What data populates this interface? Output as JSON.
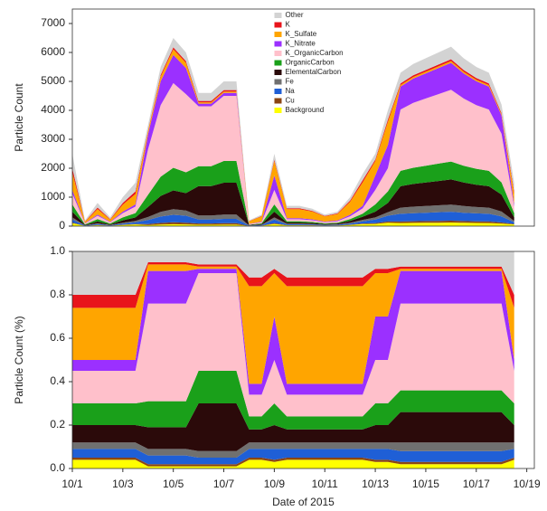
{
  "chart_data": [
    {
      "type": "area",
      "stacked": true,
      "ylabel": "Particle Count",
      "legend": "top-center",
      "x": [
        1,
        1.5,
        2,
        2.5,
        3,
        3.5,
        4,
        4.5,
        5,
        5.5,
        6,
        6.5,
        7,
        7.5,
        8,
        8.5,
        9,
        9.5,
        10,
        10.5,
        11,
        11.5,
        12,
        12.5,
        13,
        13.5,
        14,
        14.5,
        15,
        15.5,
        16,
        16.5,
        17,
        17.5,
        18,
        18.5
      ],
      "xlim": [
        1,
        19.3
      ],
      "ylim": [
        0,
        7500
      ],
      "yticks": [
        0,
        1000,
        2000,
        3000,
        4000,
        5000,
        6000,
        7000
      ],
      "series": [
        {
          "name": "Other",
          "color": "#d3d3d3",
          "values": [
            500,
            40,
            160,
            60,
            200,
            300,
            175,
            275,
            325,
            300,
            276,
            276,
            300,
            300,
            24,
            48,
            200,
            84,
            84,
            72,
            48,
            60,
            120,
            216,
            200,
            320,
            371,
            392,
            406,
            420,
            434,
            406,
            385,
            371,
            294,
            300
          ]
        },
        {
          "name": "K",
          "color": "#e8141b",
          "values": [
            150,
            12,
            48,
            18,
            60,
            90,
            35,
            55,
            65,
            60,
            46,
            46,
            50,
            50,
            8,
            16,
            50,
            28,
            28,
            24,
            16,
            20,
            40,
            72,
            50,
            80,
            53,
            56,
            58,
            60,
            62,
            58,
            55,
            53,
            42,
            90
          ]
        },
        {
          "name": "K_Sulfate",
          "color": "#ffa500",
          "values": [
            600,
            48,
            192,
            72,
            240,
            360,
            105,
            165,
            195,
            180,
            46,
            46,
            50,
            50,
            90,
            180,
            500,
            315,
            315,
            270,
            180,
            225,
            450,
            810,
            500,
            800,
            53,
            56,
            58,
            60,
            62,
            58,
            55,
            53,
            42,
            360
          ]
        },
        {
          "name": "K_Nitrate",
          "color": "#9b30ff",
          "values": [
            125,
            10,
            40,
            15,
            50,
            75,
            525,
            825,
            975,
            900,
            92,
            92,
            100,
            100,
            10,
            20,
            500,
            35,
            35,
            30,
            20,
            25,
            50,
            90,
            500,
            800,
            795,
            840,
            870,
            900,
            930,
            870,
            825,
            795,
            630,
            75
          ]
        },
        {
          "name": "K_OrganicCarbon",
          "color": "#ffc0cb",
          "values": [
            375,
            30,
            120,
            45,
            150,
            225,
            1575,
            2475,
            2925,
            2700,
            2070,
            2070,
            2250,
            2250,
            20,
            40,
            500,
            70,
            70,
            60,
            40,
            50,
            100,
            180,
            500,
            800,
            2120,
            2240,
            2320,
            2400,
            2480,
            2320,
            2200,
            2120,
            1680,
            225
          ]
        },
        {
          "name": "OrganicCarbon",
          "color": "#1aa01a",
          "values": [
            250,
            20,
            80,
            30,
            100,
            150,
            420,
            660,
            780,
            720,
            690,
            690,
            750,
            750,
            12,
            24,
            250,
            42,
            42,
            36,
            24,
            30,
            60,
            108,
            250,
            400,
            530,
            560,
            580,
            600,
            620,
            580,
            550,
            530,
            420,
            150
          ]
        },
        {
          "name": "ElementalCarbon",
          "color": "#2b0a0a",
          "values": [
            200,
            16,
            64,
            24,
            80,
            120,
            350,
            550,
            650,
            600,
            1012,
            1012,
            1100,
            1100,
            12,
            24,
            200,
            42,
            42,
            36,
            24,
            30,
            60,
            108,
            200,
            320,
            742,
            784,
            812,
            840,
            868,
            812,
            770,
            742,
            588,
            120
          ]
        },
        {
          "name": "Fe",
          "color": "#707070",
          "values": [
            75,
            6,
            24,
            9,
            30,
            45,
            105,
            165,
            195,
            180,
            138,
            138,
            150,
            150,
            6,
            12,
            75,
            21,
            21,
            18,
            12,
            15,
            30,
            54,
            75,
            120,
            212,
            224,
            232,
            240,
            248,
            232,
            220,
            212,
            168,
            45
          ]
        },
        {
          "name": "Na",
          "color": "#1f5fd6",
          "values": [
            100,
            8,
            32,
            12,
            40,
            60,
            140,
            220,
            260,
            240,
            138,
            138,
            150,
            150,
            8,
            16,
            125,
            28,
            28,
            24,
            16,
            20,
            40,
            72,
            125,
            200,
            265,
            280,
            290,
            300,
            310,
            290,
            275,
            265,
            210,
            60
          ]
        },
        {
          "name": "Cu",
          "color": "#8b4513",
          "values": [
            25,
            2,
            8,
            3,
            10,
            15,
            35,
            55,
            65,
            60,
            46,
            46,
            50,
            50,
            2,
            4,
            25,
            7,
            7,
            6,
            4,
            5,
            10,
            18,
            25,
            40,
            53,
            56,
            58,
            60,
            62,
            58,
            55,
            53,
            42,
            15
          ]
        },
        {
          "name": "Background",
          "color": "#ffff00",
          "values": [
            100,
            8,
            32,
            12,
            40,
            60,
            35,
            55,
            65,
            60,
            46,
            46,
            50,
            50,
            8,
            16,
            75,
            28,
            28,
            24,
            16,
            20,
            40,
            72,
            75,
            120,
            106,
            112,
            116,
            120,
            124,
            116,
            110,
            106,
            84,
            60
          ]
        }
      ]
    },
    {
      "type": "area",
      "stacked": true,
      "ylabel": "Particle Count (%)",
      "xlabel": "Date of 2015",
      "x": [
        1,
        1.5,
        2,
        2.5,
        3,
        3.5,
        4,
        4.5,
        5,
        5.5,
        6,
        6.5,
        7,
        7.5,
        8,
        8.5,
        9,
        9.5,
        10,
        10.5,
        11,
        11.5,
        12,
        12.5,
        13,
        13.5,
        14,
        14.5,
        15,
        15.5,
        16,
        16.5,
        17,
        17.5,
        18,
        18.5
      ],
      "xlim": [
        1,
        19.3
      ],
      "xticks": [
        {
          "value": 1,
          "label": "10/1"
        },
        {
          "value": 3,
          "label": "10/3"
        },
        {
          "value": 5,
          "label": "10/5"
        },
        {
          "value": 7,
          "label": "10/7"
        },
        {
          "value": 9,
          "label": "10/9"
        },
        {
          "value": 11,
          "label": "10/11"
        },
        {
          "value": 13,
          "label": "10/13"
        },
        {
          "value": 15,
          "label": "10/15"
        },
        {
          "value": 17,
          "label": "10/17"
        },
        {
          "value": 19,
          "label": "10/19"
        }
      ],
      "ylim": [
        0,
        1
      ],
      "yticks": [
        {
          "value": 0,
          "label": "0.0"
        },
        0.2,
        0.4,
        0.6,
        0.8,
        {
          "value": 1,
          "label": "1.0"
        }
      ],
      "series": [
        {
          "color": "#d3d3d3",
          "values": [
            0.2,
            0.2,
            0.2,
            0.2,
            0.2,
            0.2,
            0.05,
            0.05,
            0.05,
            0.05,
            0.06,
            0.06,
            0.06,
            0.06,
            0.12,
            0.12,
            0.08,
            0.12,
            0.12,
            0.12,
            0.12,
            0.12,
            0.12,
            0.12,
            0.08,
            0.08,
            0.07,
            0.07,
            0.07,
            0.07,
            0.07,
            0.07,
            0.07,
            0.07,
            0.07,
            0.2
          ]
        },
        {
          "color": "#e8141b",
          "values": [
            0.06,
            0.06,
            0.06,
            0.06,
            0.06,
            0.06,
            0.01,
            0.01,
            0.01,
            0.01,
            0.01,
            0.01,
            0.01,
            0.01,
            0.04,
            0.04,
            0.02,
            0.04,
            0.04,
            0.04,
            0.04,
            0.04,
            0.04,
            0.04,
            0.02,
            0.02,
            0.01,
            0.01,
            0.01,
            0.01,
            0.01,
            0.01,
            0.01,
            0.01,
            0.01,
            0.06
          ]
        },
        {
          "color": "#ffa500",
          "values": [
            0.24,
            0.24,
            0.24,
            0.24,
            0.24,
            0.24,
            0.03,
            0.03,
            0.03,
            0.03,
            0.01,
            0.01,
            0.01,
            0.01,
            0.45,
            0.45,
            0.2,
            0.45,
            0.45,
            0.45,
            0.45,
            0.45,
            0.45,
            0.45,
            0.2,
            0.2,
            0.01,
            0.01,
            0.01,
            0.01,
            0.01,
            0.01,
            0.01,
            0.01,
            0.01,
            0.24
          ]
        },
        {
          "color": "#9b30ff",
          "values": [
            0.05,
            0.05,
            0.05,
            0.05,
            0.05,
            0.05,
            0.15,
            0.15,
            0.15,
            0.15,
            0.02,
            0.02,
            0.02,
            0.02,
            0.05,
            0.05,
            0.2,
            0.05,
            0.05,
            0.05,
            0.05,
            0.05,
            0.05,
            0.05,
            0.2,
            0.2,
            0.15,
            0.15,
            0.15,
            0.15,
            0.15,
            0.15,
            0.15,
            0.15,
            0.15,
            0.05
          ]
        },
        {
          "color": "#ffc0cb",
          "values": [
            0.15,
            0.15,
            0.15,
            0.15,
            0.15,
            0.15,
            0.45,
            0.45,
            0.45,
            0.45,
            0.45,
            0.45,
            0.45,
            0.45,
            0.1,
            0.1,
            0.2,
            0.1,
            0.1,
            0.1,
            0.1,
            0.1,
            0.1,
            0.1,
            0.2,
            0.2,
            0.4,
            0.4,
            0.4,
            0.4,
            0.4,
            0.4,
            0.4,
            0.4,
            0.4,
            0.15
          ]
        },
        {
          "color": "#1aa01a",
          "values": [
            0.1,
            0.1,
            0.1,
            0.1,
            0.1,
            0.1,
            0.12,
            0.12,
            0.12,
            0.12,
            0.15,
            0.15,
            0.15,
            0.15,
            0.06,
            0.06,
            0.1,
            0.06,
            0.06,
            0.06,
            0.06,
            0.06,
            0.06,
            0.06,
            0.1,
            0.1,
            0.1,
            0.1,
            0.1,
            0.1,
            0.1,
            0.1,
            0.1,
            0.1,
            0.1,
            0.1
          ]
        },
        {
          "color": "#2b0a0a",
          "values": [
            0.08,
            0.08,
            0.08,
            0.08,
            0.08,
            0.08,
            0.1,
            0.1,
            0.1,
            0.1,
            0.22,
            0.22,
            0.22,
            0.22,
            0.06,
            0.06,
            0.08,
            0.06,
            0.06,
            0.06,
            0.06,
            0.06,
            0.06,
            0.06,
            0.08,
            0.08,
            0.14,
            0.14,
            0.14,
            0.14,
            0.14,
            0.14,
            0.14,
            0.14,
            0.14,
            0.08
          ]
        },
        {
          "color": "#707070",
          "values": [
            0.03,
            0.03,
            0.03,
            0.03,
            0.03,
            0.03,
            0.03,
            0.03,
            0.03,
            0.03,
            0.03,
            0.03,
            0.03,
            0.03,
            0.03,
            0.03,
            0.03,
            0.03,
            0.03,
            0.03,
            0.03,
            0.03,
            0.03,
            0.03,
            0.03,
            0.03,
            0.04,
            0.04,
            0.04,
            0.04,
            0.04,
            0.04,
            0.04,
            0.04,
            0.04,
            0.03
          ]
        },
        {
          "color": "#1f5fd6",
          "values": [
            0.04,
            0.04,
            0.04,
            0.04,
            0.04,
            0.04,
            0.04,
            0.04,
            0.04,
            0.04,
            0.03,
            0.03,
            0.03,
            0.03,
            0.04,
            0.04,
            0.05,
            0.04,
            0.04,
            0.04,
            0.04,
            0.04,
            0.04,
            0.04,
            0.05,
            0.05,
            0.05,
            0.05,
            0.05,
            0.05,
            0.05,
            0.05,
            0.05,
            0.05,
            0.05,
            0.04
          ]
        },
        {
          "color": "#8b4513",
          "values": [
            0.01,
            0.01,
            0.01,
            0.01,
            0.01,
            0.01,
            0.01,
            0.01,
            0.01,
            0.01,
            0.01,
            0.01,
            0.01,
            0.01,
            0.01,
            0.01,
            0.01,
            0.01,
            0.01,
            0.01,
            0.01,
            0.01,
            0.01,
            0.01,
            0.01,
            0.01,
            0.01,
            0.01,
            0.01,
            0.01,
            0.01,
            0.01,
            0.01,
            0.01,
            0.01,
            0.01
          ]
        },
        {
          "color": "#ffff00",
          "values": [
            0.04,
            0.04,
            0.04,
            0.04,
            0.04,
            0.04,
            0.01,
            0.01,
            0.01,
            0.01,
            0.01,
            0.01,
            0.01,
            0.01,
            0.04,
            0.04,
            0.03,
            0.04,
            0.04,
            0.04,
            0.04,
            0.04,
            0.04,
            0.04,
            0.03,
            0.03,
            0.02,
            0.02,
            0.02,
            0.02,
            0.02,
            0.02,
            0.02,
            0.02,
            0.02,
            0.04
          ]
        }
      ]
    }
  ]
}
